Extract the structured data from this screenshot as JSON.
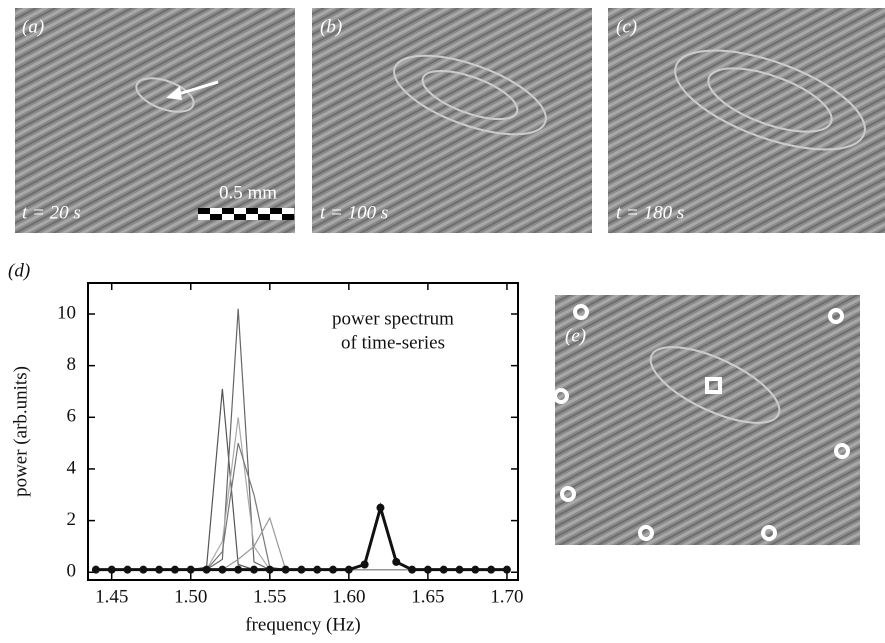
{
  "panels": {
    "a": {
      "label": "(a)",
      "time": "t = 20 s",
      "scale": "0.5 mm"
    },
    "b": {
      "label": "(b)",
      "time": "t = 100 s"
    },
    "c": {
      "label": "(c)",
      "time": "t = 180 s"
    },
    "d": {
      "label": "(d)"
    },
    "e": {
      "label": "(e)"
    }
  },
  "chart_data": {
    "type": "line",
    "annotation": [
      "power spectrum",
      "of time-series"
    ],
    "x_label": "frequency (Hz)",
    "y_label": "power (arb.units)",
    "x": [
      1.44,
      1.45,
      1.46,
      1.47,
      1.48,
      1.49,
      1.5,
      1.51,
      1.52,
      1.53,
      1.54,
      1.55,
      1.56,
      1.57,
      1.58,
      1.59,
      1.6,
      1.61,
      1.62,
      1.63,
      1.64,
      1.65,
      1.66,
      1.67,
      1.68,
      1.69,
      1.7
    ],
    "series": [
      {
        "color": "#555555",
        "values": [
          0.1,
          0.1,
          0.1,
          0.1,
          0.1,
          0.1,
          0.1,
          0.2,
          7.1,
          0.3,
          0.1,
          0.1,
          0.1,
          0.1,
          0.1,
          0.1,
          0.1,
          0.1,
          0.1,
          0.1,
          0.1,
          0.1,
          0.1,
          0.1,
          0.1,
          0.1,
          0.1
        ]
      },
      {
        "color": "#666666",
        "values": [
          0.1,
          0.1,
          0.1,
          0.1,
          0.1,
          0.1,
          0.1,
          0.1,
          0.5,
          10.2,
          0.4,
          0.1,
          0.1,
          0.1,
          0.1,
          0.1,
          0.1,
          0.1,
          0.1,
          0.1,
          0.1,
          0.1,
          0.1,
          0.1,
          0.1,
          0.1,
          0.1
        ]
      },
      {
        "color": "#aaaaaa",
        "values": [
          0.1,
          0.1,
          0.1,
          0.1,
          0.1,
          0.1,
          0.1,
          0.1,
          1.2,
          6.0,
          1.0,
          0.1,
          0.1,
          0.1,
          0.1,
          0.1,
          0.1,
          0.1,
          0.1,
          0.1,
          0.1,
          0.1,
          0.1,
          0.1,
          0.1,
          0.1,
          0.1
        ]
      },
      {
        "color": "#777777",
        "values": [
          0.1,
          0.1,
          0.1,
          0.1,
          0.1,
          0.1,
          0.1,
          0.1,
          0.8,
          5.0,
          3.0,
          0.2,
          0.1,
          0.1,
          0.1,
          0.1,
          0.1,
          0.1,
          0.1,
          0.1,
          0.1,
          0.1,
          0.1,
          0.1,
          0.1,
          0.1,
          0.1
        ]
      },
      {
        "color": "#999999",
        "values": [
          0.1,
          0.1,
          0.1,
          0.1,
          0.1,
          0.1,
          0.1,
          0.1,
          0.1,
          0.5,
          1.0,
          2.1,
          0.1,
          0.1,
          0.1,
          0.1,
          0.1,
          0.1,
          0.1,
          0.1,
          0.1,
          0.1,
          0.1,
          0.1,
          0.1,
          0.1,
          0.1
        ]
      },
      {
        "color": "#111111",
        "values": [
          0.1,
          0.1,
          0.1,
          0.1,
          0.1,
          0.1,
          0.1,
          0.1,
          0.1,
          0.1,
          0.1,
          0.1,
          0.1,
          0.1,
          0.1,
          0.1,
          0.1,
          0.3,
          2.5,
          0.4,
          0.1,
          0.1,
          0.1,
          0.1,
          0.1,
          0.1,
          0.1
        ]
      }
    ],
    "markers_on_series": 5,
    "xlim": [
      1.435,
      1.707
    ],
    "ylim": [
      -0.3,
      11.2
    ],
    "xticks": [
      1.45,
      {
        "value": 1.5,
        "label": "1.50"
      },
      1.55,
      {
        "value": 1.6,
        "label": "1.60"
      },
      1.65,
      {
        "value": 1.7,
        "label": "1.70"
      }
    ],
    "yticks": [
      0,
      2,
      4,
      6,
      8,
      10
    ]
  }
}
